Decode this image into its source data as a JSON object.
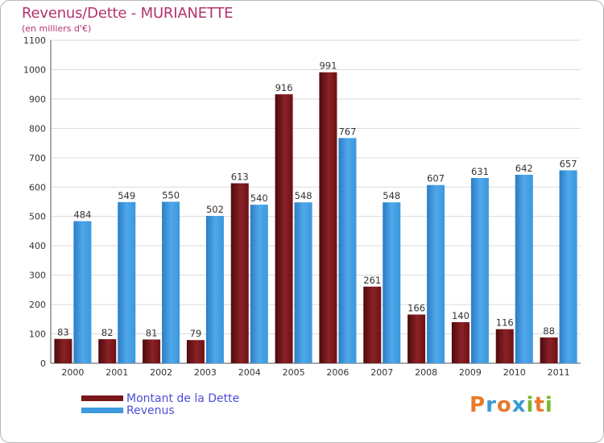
{
  "title": "Revenus/Dette - MURIANETTE",
  "subtitle": "(en milliers d'€)",
  "brand": {
    "text": "Proxiti",
    "letters": [
      "P",
      "r",
      "o",
      "x",
      "i",
      "t",
      "i"
    ],
    "colors": [
      "#e9792b",
      "#3a9ad9",
      "#e9792b",
      "#3a9ad9",
      "#7cb82f",
      "#e9792b",
      "#7cb82f"
    ]
  },
  "colors": {
    "title": "#b2336e",
    "dette": "#7a1518",
    "revenus": "#3d9be0",
    "legend_text": "#4d4dd9",
    "grid": "#d9d9d9"
  },
  "chart_data": {
    "type": "bar",
    "title": "Revenus/Dette - MURIANETTE",
    "ylabel": "(en milliers d'€)",
    "xlabel": "",
    "categories": [
      "2000",
      "2001",
      "2002",
      "2003",
      "2004",
      "2005",
      "2006",
      "2007",
      "2008",
      "2009",
      "2010",
      "2011"
    ],
    "ylim": [
      0,
      1100
    ],
    "yticks": [
      0,
      100,
      200,
      300,
      400,
      500,
      600,
      700,
      800,
      900,
      1000,
      1100
    ],
    "grid": true,
    "legend_position": "bottom-left",
    "series": [
      {
        "name": "Montant de la Dette",
        "values": [
          83,
          82,
          81,
          79,
          613,
          916,
          991,
          261,
          166,
          140,
          116,
          88
        ]
      },
      {
        "name": "Revenus",
        "values": [
          484,
          549,
          550,
          502,
          540,
          548,
          767,
          548,
          607,
          631,
          642,
          657
        ]
      }
    ]
  }
}
